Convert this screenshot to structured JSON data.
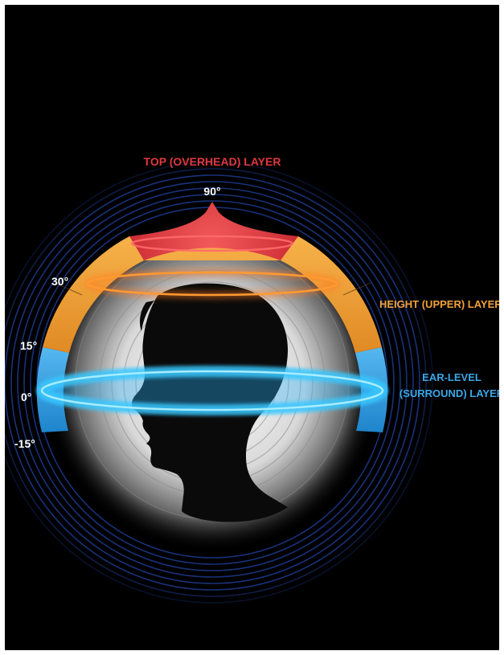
{
  "layers": {
    "top": {
      "label": "TOP (OVERHEAD) LAYER",
      "color": "#e0383e"
    },
    "height": {
      "label": "HEIGHT (UPPER) LAYER",
      "color": "#f2a23a"
    },
    "ear": {
      "label_line1": "EAR-LEVEL",
      "label_line2": "(SURROUND) LAYER",
      "color": "#3aa7e6"
    }
  },
  "angles": {
    "a90": "90°",
    "a30": "30°",
    "a15": "15°",
    "a0": "0°",
    "a_minus15": "-15°"
  },
  "colors": {
    "background": "#000000",
    "angle_text": "#ffffff",
    "rings": "#1f3f9a"
  }
}
